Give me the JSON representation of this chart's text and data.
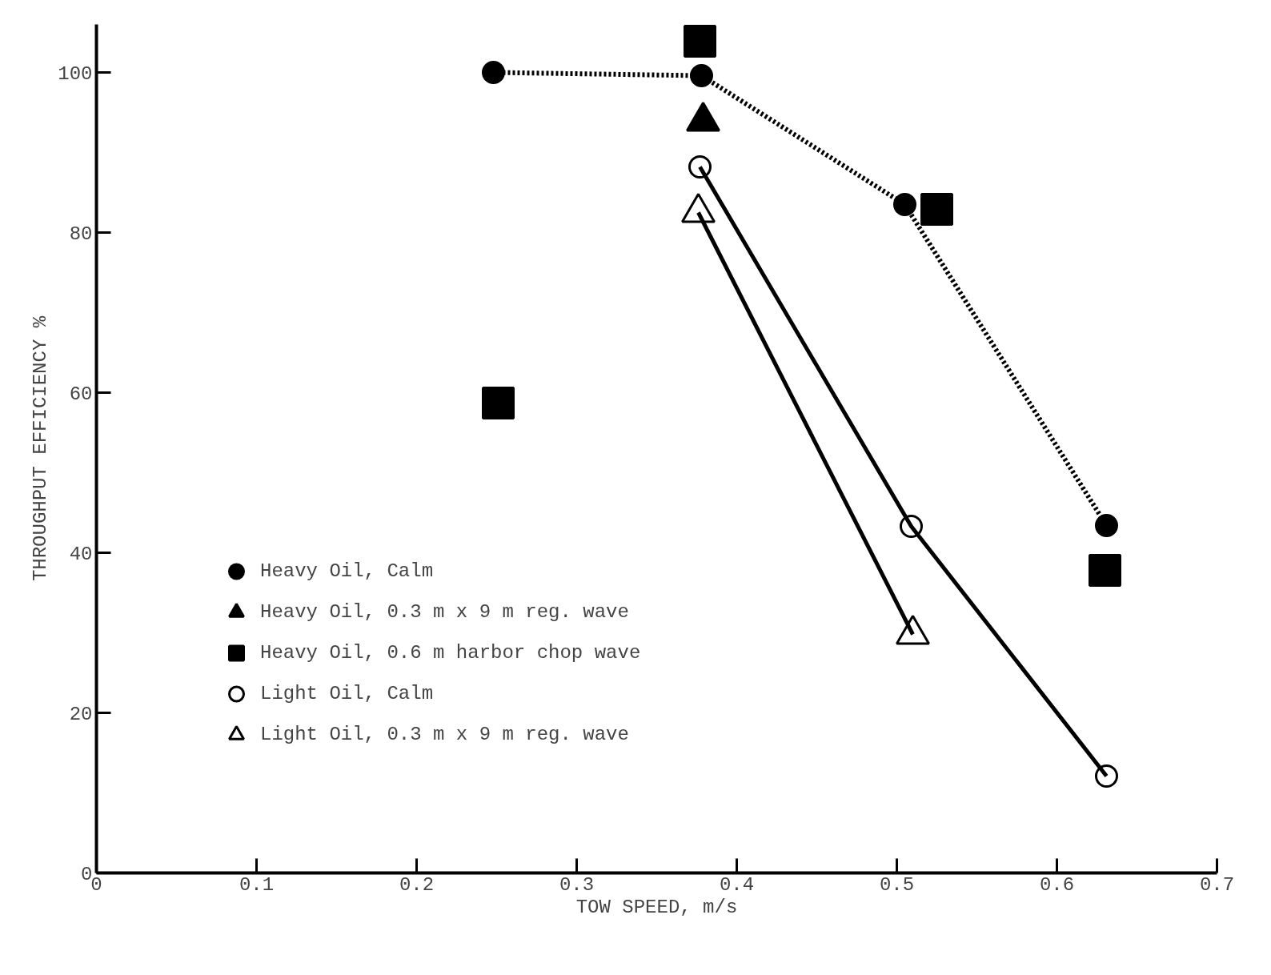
{
  "chart_data": {
    "type": "line",
    "xlabel": "TOW SPEED, m/s",
    "ylabel": "THROUGHPUT EFFICIENCY %",
    "xlim": [
      0,
      0.7
    ],
    "ylim": [
      0,
      106
    ],
    "xticks": [
      0,
      0.1,
      0.2,
      0.3,
      0.4,
      0.5,
      0.6,
      0.7
    ],
    "yticks": [
      0,
      20,
      40,
      60,
      80,
      100
    ],
    "grid": false,
    "legend": "bottom left",
    "series": [
      {
        "name": "Heavy Oil, Calm",
        "line_style": "dotted",
        "marker": "circle",
        "color": "#000000",
        "x": [
          0.248,
          0.378,
          0.505,
          0.631
        ],
        "values": [
          100,
          99.6,
          83.5,
          43.4
        ]
      },
      {
        "name": "Heavy Oil, 0.3 m x 9 m reg. wave",
        "type": "scatter",
        "marker": "triangle",
        "color": "#000000",
        "x": [
          0.379
        ],
        "values": [
          93.9
        ]
      },
      {
        "name": "Heavy Oil, 0.6 m harbor chop wave",
        "type": "scatter",
        "marker": "square",
        "color": "#000000",
        "x": [
          0.251,
          0.377,
          0.525,
          0.63
        ],
        "values": [
          58.7,
          103.9,
          82.9,
          37.8
        ]
      },
      {
        "name": "Light Oil, Calm",
        "line_style": "solid",
        "marker": "circle",
        "color": "#ffffff",
        "x": [
          0.377,
          0.509,
          0.631
        ],
        "values": [
          88.2,
          43.3,
          12.1
        ]
      },
      {
        "name": "Light Oil, 0.3 m x 9 m reg. wave",
        "line_style": "solid",
        "marker": "triangle",
        "color": "#ffffff",
        "x": [
          0.376,
          0.51
        ],
        "values": [
          82.5,
          29.8
        ]
      }
    ]
  }
}
